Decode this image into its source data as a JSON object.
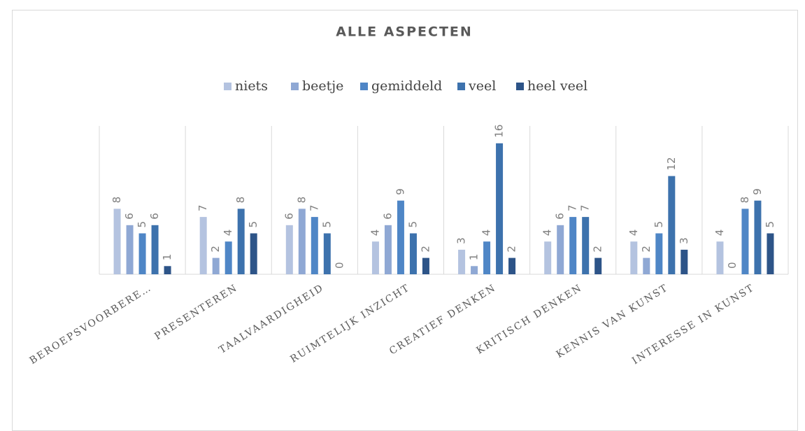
{
  "chart_data": {
    "type": "bar",
    "title": "ALLE ASPECTEN",
    "categories": [
      "BEROEPSVOORBERE…",
      "PRESENTEREN",
      "TAALVAARDIGHEID",
      "RUIMTELIJK INZICHT",
      "CREATIEF DENKEN",
      "KRITISCH DENKEN",
      "KENNIS VAN KUNST",
      "INTERESSE IN KUNST"
    ],
    "series": [
      {
        "name": "niets",
        "color": "#b4c3e0",
        "values": [
          8,
          7,
          6,
          4,
          3,
          4,
          4,
          4
        ]
      },
      {
        "name": "beetje",
        "color": "#8fa8d4",
        "values": [
          6,
          2,
          8,
          6,
          1,
          6,
          2,
          0
        ]
      },
      {
        "name": "gemiddeld",
        "color": "#4f86c6",
        "values": [
          5,
          4,
          7,
          9,
          4,
          7,
          5,
          8
        ]
      },
      {
        "name": "veel",
        "color": "#3d72ad",
        "values": [
          6,
          8,
          5,
          5,
          16,
          7,
          12,
          9
        ]
      },
      {
        "name": "heel veel",
        "color": "#2d5488",
        "values": [
          1,
          5,
          0,
          2,
          2,
          2,
          3,
          5
        ]
      }
    ],
    "legend": "top"
  }
}
